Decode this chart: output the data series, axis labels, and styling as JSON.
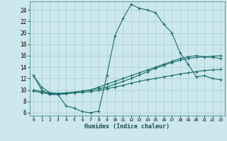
{
  "xlabel": "Humidex (Indice chaleur)",
  "bg_color": "#cce8ec",
  "grid_color": "#aacdd4",
  "line_color": "#1a6b6b",
  "xlim": [
    -0.5,
    23.5
  ],
  "ylim": [
    5.5,
    25.5
  ],
  "xticks": [
    0,
    1,
    2,
    3,
    4,
    5,
    6,
    7,
    8,
    9,
    10,
    11,
    12,
    13,
    14,
    15,
    16,
    17,
    18,
    19,
    20,
    21,
    22,
    23
  ],
  "yticks": [
    6,
    8,
    10,
    12,
    14,
    16,
    18,
    20,
    22,
    24
  ],
  "series": [
    {
      "x": [
        0,
        1,
        2,
        3,
        4,
        5,
        6,
        7,
        8,
        9,
        10,
        11,
        12,
        13,
        14,
        15,
        16,
        17,
        18,
        19,
        20,
        21,
        22,
        23
      ],
      "y": [
        12.5,
        10.0,
        9.2,
        9.2,
        7.2,
        6.8,
        6.2,
        6.0,
        6.3,
        12.5,
        19.5,
        22.5,
        25.0,
        24.3,
        24.0,
        23.5,
        21.5,
        20.0,
        16.5,
        14.5,
        12.3,
        12.5,
        12.0,
        11.8
      ]
    },
    {
      "x": [
        0,
        1,
        2,
        3,
        4,
        5,
        6,
        7,
        8,
        9,
        10,
        11,
        12,
        13,
        14,
        15,
        16,
        17,
        18,
        19,
        20,
        21,
        22,
        23
      ],
      "y": [
        9.8,
        9.5,
        9.3,
        9.2,
        9.3,
        9.5,
        9.6,
        9.7,
        9.9,
        10.2,
        10.5,
        10.8,
        11.2,
        11.5,
        11.8,
        12.0,
        12.3,
        12.5,
        12.8,
        13.0,
        13.2,
        13.4,
        13.5,
        13.6
      ]
    },
    {
      "x": [
        0,
        1,
        2,
        3,
        4,
        5,
        6,
        7,
        8,
        9,
        10,
        11,
        12,
        13,
        14,
        15,
        16,
        17,
        18,
        19,
        20,
        21,
        22,
        23
      ],
      "y": [
        10.0,
        9.7,
        9.5,
        9.4,
        9.5,
        9.6,
        9.8,
        10.0,
        10.2,
        10.5,
        11.0,
        11.5,
        12.0,
        12.6,
        13.2,
        13.8,
        14.3,
        14.8,
        15.2,
        15.5,
        15.7,
        15.8,
        15.9,
        16.0
      ]
    },
    {
      "x": [
        0,
        1,
        2,
        3,
        4,
        5,
        6,
        7,
        8,
        9,
        10,
        11,
        12,
        13,
        14,
        15,
        16,
        17,
        18,
        19,
        20,
        21,
        22,
        23
      ],
      "y": [
        12.5,
        10.5,
        9.5,
        9.3,
        9.4,
        9.6,
        9.8,
        10.0,
        10.5,
        11.0,
        11.5,
        12.0,
        12.5,
        13.0,
        13.5,
        14.0,
        14.5,
        15.0,
        15.5,
        15.8,
        16.0,
        15.8,
        15.7,
        15.5
      ]
    }
  ]
}
